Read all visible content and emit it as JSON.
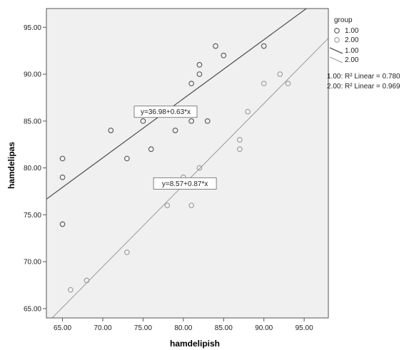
{
  "chart_data": {
    "type": "scatter",
    "xlabel": "hamdelipish",
    "ylabel": "hamdelipas",
    "xlim": [
      63,
      98
    ],
    "ylim": [
      64,
      97
    ],
    "x_ticks": [
      "65.00",
      "70.00",
      "75.00",
      "80.00",
      "85.00",
      "90.00",
      "95.00"
    ],
    "y_ticks": [
      "65.00",
      "70.00",
      "75.00",
      "80.00",
      "85.00",
      "90.00",
      "95.00"
    ],
    "grid": false,
    "legend_title": "group",
    "legend_position": "right",
    "legend_markers": [
      "1.00",
      "2.00"
    ],
    "legend_lines": [
      "1.00",
      "2.00"
    ],
    "r2_labels": [
      {
        "group": "1.00",
        "text": "1.00: R² Linear = 0.780"
      },
      {
        "group": "2.00",
        "text": "2.00: R² Linear = 0.969"
      }
    ],
    "series": [
      {
        "name": "1.00",
        "color": "#555555",
        "points": [
          {
            "x": 65,
            "y": 81
          },
          {
            "x": 65,
            "y": 79
          },
          {
            "x": 65,
            "y": 74
          },
          {
            "x": 71,
            "y": 84
          },
          {
            "x": 73,
            "y": 81
          },
          {
            "x": 75,
            "y": 85
          },
          {
            "x": 76,
            "y": 82
          },
          {
            "x": 79,
            "y": 84
          },
          {
            "x": 81,
            "y": 89
          },
          {
            "x": 81,
            "y": 85
          },
          {
            "x": 82,
            "y": 91
          },
          {
            "x": 82,
            "y": 90
          },
          {
            "x": 83,
            "y": 85
          },
          {
            "x": 84,
            "y": 93
          },
          {
            "x": 85,
            "y": 92
          },
          {
            "x": 90,
            "y": 93
          }
        ],
        "fit": {
          "intercept": 36.98,
          "slope": 0.63,
          "label": "y=36.98+0.63*x"
        }
      },
      {
        "name": "2.00",
        "color": "#999999",
        "points": [
          {
            "x": 66,
            "y": 67
          },
          {
            "x": 68,
            "y": 68
          },
          {
            "x": 73,
            "y": 71
          },
          {
            "x": 78,
            "y": 76
          },
          {
            "x": 80,
            "y": 79
          },
          {
            "x": 81,
            "y": 76
          },
          {
            "x": 82,
            "y": 80
          },
          {
            "x": 87,
            "y": 83
          },
          {
            "x": 87,
            "y": 82
          },
          {
            "x": 88,
            "y": 86
          },
          {
            "x": 90,
            "y": 89
          },
          {
            "x": 92,
            "y": 90
          },
          {
            "x": 93,
            "y": 89
          }
        ],
        "fit": {
          "intercept": 8.57,
          "slope": 0.87,
          "label": "y=8.57+0.87*x"
        }
      }
    ]
  }
}
